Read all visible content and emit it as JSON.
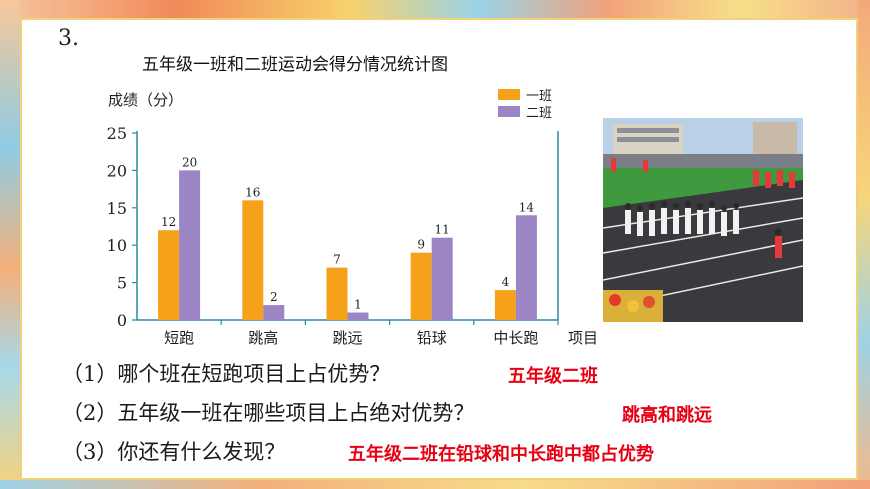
{
  "question_number": "3.",
  "colors": {
    "class1": "#f5a21a",
    "class2": "#9b85c4",
    "axis": "#2a8aa3",
    "answer": "#e60012"
  },
  "chart_data": {
    "type": "bar",
    "title": "五年级一班和二班运动会得分情况统计图",
    "ylabel": "成绩（分）",
    "xlabel": "项目",
    "categories": [
      "短跑",
      "跳高",
      "跳远",
      "铅球",
      "中长跑"
    ],
    "series": [
      {
        "name": "一班",
        "values": [
          12,
          16,
          7,
          9,
          4
        ]
      },
      {
        "name": "二班",
        "values": [
          20,
          2,
          1,
          11,
          14
        ]
      }
    ],
    "ylim": [
      0,
      25
    ],
    "yticks": [
      0,
      5,
      10,
      15,
      20,
      25
    ],
    "grid": false,
    "legend": "top-right"
  },
  "questions": [
    {
      "label": "（1）哪个班在短跑项目上占优势？",
      "answer": "五年级二班"
    },
    {
      "label": "（2）五年级一班在哪些项目上占绝对优势？",
      "answer": "跳高和跳远"
    },
    {
      "label": "（3）你还有什么发现？",
      "answer": "五年级二班在铅球和中长跑中都占优势"
    }
  ]
}
